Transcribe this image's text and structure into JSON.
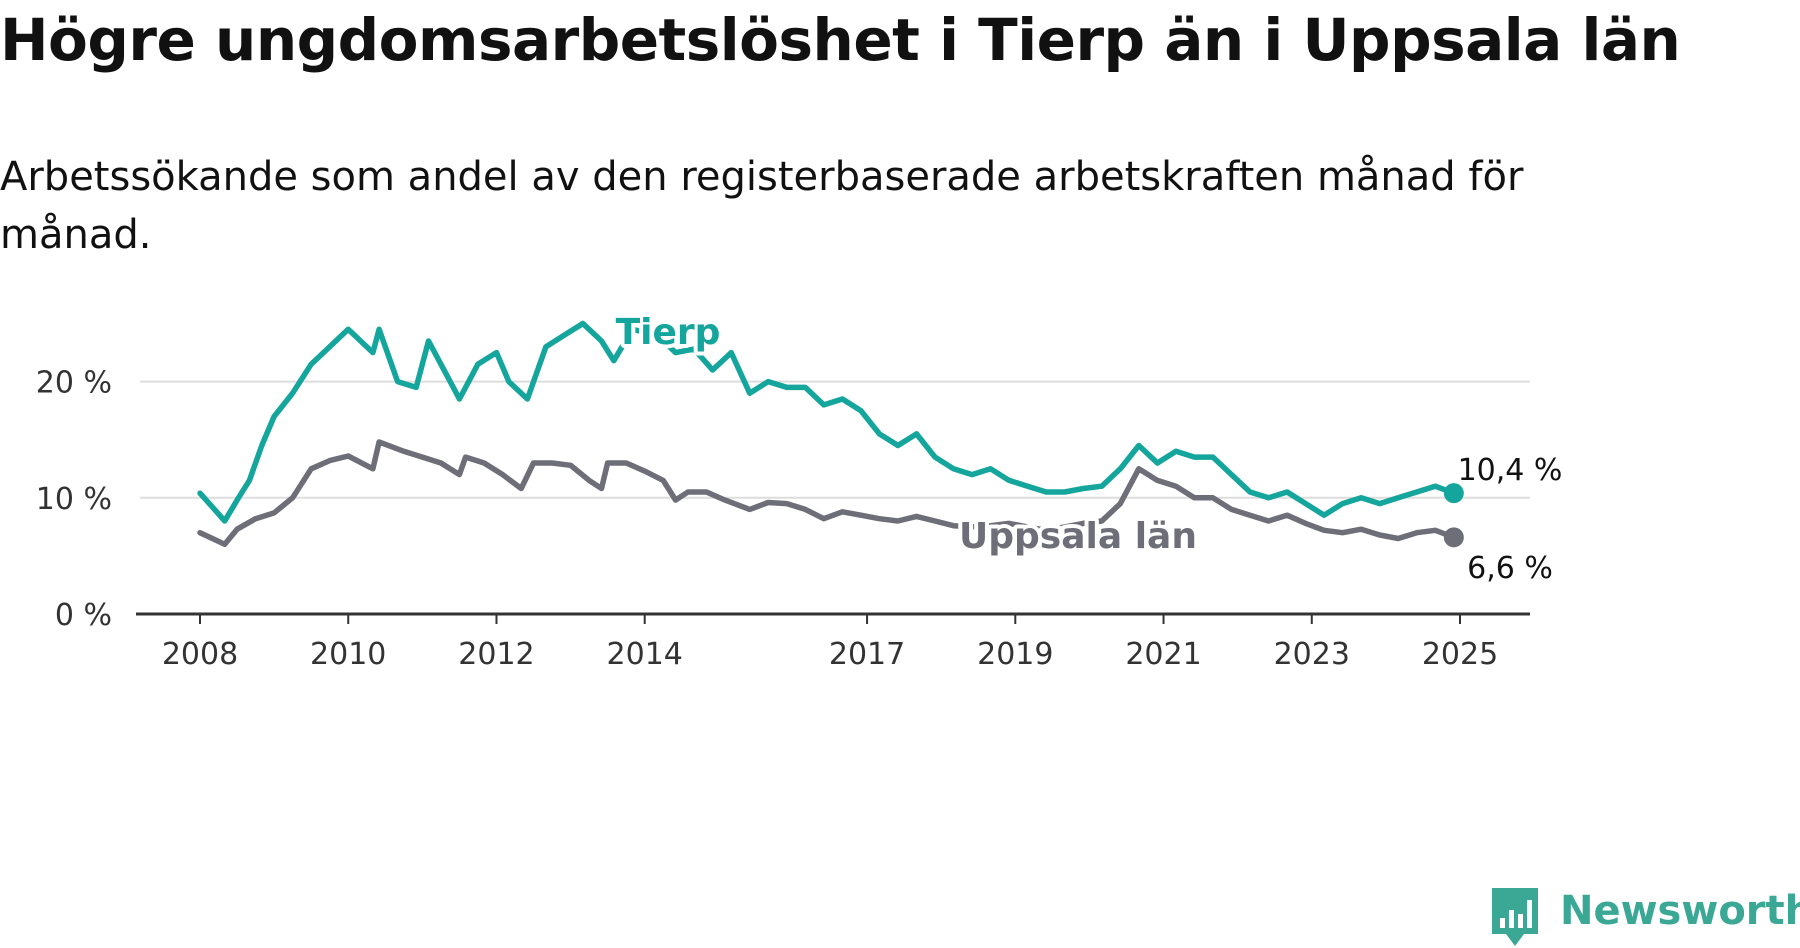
{
  "title": "Högre ungdomsarbetslöshet i Tierp än i Uppsala län",
  "subtitle": "Arbetssökande som andel av den registerbaserade arbetskraften månad för månad.",
  "brand": {
    "name": "Newsworthy",
    "color": "#3aa894"
  },
  "colors": {
    "tierp": "#14a59c",
    "uppsala": "#6e6e78",
    "grid": "#dddddd",
    "axis": "#333333"
  },
  "chart_data": {
    "type": "line",
    "title": "Högre ungdomsarbetslöshet i Tierp än i Uppsala län",
    "subtitle": "Arbetssökande som andel av den registerbaserade arbetskraften månad för månad.",
    "xlabel": "",
    "ylabel": "",
    "x_ticks": [
      "2008",
      "2010",
      "2012",
      "2014",
      "2017",
      "2019",
      "2021",
      "2023",
      "2025"
    ],
    "y_ticks": [
      "0 %",
      "10 %",
      "20 %"
    ],
    "xlim": [
      "2008-01",
      "2025-01"
    ],
    "ylim": [
      0,
      20
    ],
    "grid": "horizontal",
    "legend": "inline labels",
    "series": [
      {
        "name": "Tierp",
        "color": "#14a59c",
        "end_label": "10,4 %",
        "points": [
          [
            "2008-01",
            10.4
          ],
          [
            "2008-03",
            9.2
          ],
          [
            "2008-05",
            8.0
          ],
          [
            "2008-07",
            9.8
          ],
          [
            "2008-09",
            11.5
          ],
          [
            "2008-11",
            14.5
          ],
          [
            "2009-01",
            17.0
          ],
          [
            "2009-04",
            19.0
          ],
          [
            "2009-07",
            21.5
          ],
          [
            "2009-10",
            23.0
          ],
          [
            "2010-01",
            24.5
          ],
          [
            "2010-03",
            23.5
          ],
          [
            "2010-05",
            22.5
          ],
          [
            "2010-06",
            24.5
          ],
          [
            "2010-09",
            20.0
          ],
          [
            "2010-12",
            19.5
          ],
          [
            "2011-02",
            23.5
          ],
          [
            "2011-05",
            20.5
          ],
          [
            "2011-07",
            18.5
          ],
          [
            "2011-10",
            21.5
          ],
          [
            "2012-01",
            22.5
          ],
          [
            "2012-03",
            20.0
          ],
          [
            "2012-06",
            18.5
          ],
          [
            "2012-09",
            23.0
          ],
          [
            "2012-12",
            24.0
          ],
          [
            "2013-03",
            25.0
          ],
          [
            "2013-06",
            23.5
          ],
          [
            "2013-08",
            21.8
          ],
          [
            "2013-11",
            24.5
          ],
          [
            "2014-03",
            24.0
          ],
          [
            "2014-06",
            22.5
          ],
          [
            "2014-09",
            22.8
          ],
          [
            "2014-12",
            21.0
          ],
          [
            "2015-03",
            22.5
          ],
          [
            "2015-06",
            19.0
          ],
          [
            "2015-09",
            20.0
          ],
          [
            "2015-12",
            19.5
          ],
          [
            "2016-03",
            19.5
          ],
          [
            "2016-06",
            18.0
          ],
          [
            "2016-09",
            18.5
          ],
          [
            "2016-12",
            17.5
          ],
          [
            "2017-03",
            15.5
          ],
          [
            "2017-06",
            14.5
          ],
          [
            "2017-09",
            15.5
          ],
          [
            "2017-12",
            13.5
          ],
          [
            "2018-03",
            12.5
          ],
          [
            "2018-06",
            12.0
          ],
          [
            "2018-09",
            12.5
          ],
          [
            "2018-12",
            11.5
          ],
          [
            "2019-03",
            11.0
          ],
          [
            "2019-06",
            10.5
          ],
          [
            "2019-09",
            10.5
          ],
          [
            "2019-12",
            10.8
          ],
          [
            "2020-03",
            11.0
          ],
          [
            "2020-06",
            12.5
          ],
          [
            "2020-09",
            14.5
          ],
          [
            "2020-12",
            13.0
          ],
          [
            "2021-03",
            14.0
          ],
          [
            "2021-06",
            13.5
          ],
          [
            "2021-09",
            13.5
          ],
          [
            "2021-12",
            12.0
          ],
          [
            "2022-03",
            10.5
          ],
          [
            "2022-06",
            10.0
          ],
          [
            "2022-09",
            10.5
          ],
          [
            "2022-12",
            9.5
          ],
          [
            "2023-03",
            8.5
          ],
          [
            "2023-06",
            9.5
          ],
          [
            "2023-09",
            10.0
          ],
          [
            "2023-12",
            9.5
          ],
          [
            "2024-03",
            10.0
          ],
          [
            "2024-06",
            10.5
          ],
          [
            "2024-09",
            11.0
          ],
          [
            "2024-12",
            10.4
          ]
        ]
      },
      {
        "name": "Uppsala län",
        "color": "#6e6e78",
        "end_label": "6,6 %",
        "points": [
          [
            "2008-01",
            7.0
          ],
          [
            "2008-03",
            6.5
          ],
          [
            "2008-05",
            6.0
          ],
          [
            "2008-07",
            7.3
          ],
          [
            "2008-10",
            8.2
          ],
          [
            "2009-01",
            8.7
          ],
          [
            "2009-04",
            10.0
          ],
          [
            "2009-07",
            12.5
          ],
          [
            "2009-10",
            13.2
          ],
          [
            "2010-01",
            13.6
          ],
          [
            "2010-05",
            12.5
          ],
          [
            "2010-06",
            14.8
          ],
          [
            "2010-10",
            14.0
          ],
          [
            "2011-01",
            13.5
          ],
          [
            "2011-04",
            13.0
          ],
          [
            "2011-07",
            12.0
          ],
          [
            "2011-08",
            13.5
          ],
          [
            "2011-11",
            13.0
          ],
          [
            "2012-02",
            12.0
          ],
          [
            "2012-05",
            10.8
          ],
          [
            "2012-07",
            13.0
          ],
          [
            "2012-10",
            13.0
          ],
          [
            "2013-01",
            12.8
          ],
          [
            "2013-04",
            11.5
          ],
          [
            "2013-06",
            10.8
          ],
          [
            "2013-07",
            13.0
          ],
          [
            "2013-10",
            13.0
          ],
          [
            "2014-01",
            12.3
          ],
          [
            "2014-04",
            11.5
          ],
          [
            "2014-06",
            9.8
          ],
          [
            "2014-08",
            10.5
          ],
          [
            "2014-11",
            10.5
          ],
          [
            "2015-02",
            9.8
          ],
          [
            "2015-06",
            9.0
          ],
          [
            "2015-09",
            9.6
          ],
          [
            "2015-12",
            9.5
          ],
          [
            "2016-03",
            9.0
          ],
          [
            "2016-06",
            8.2
          ],
          [
            "2016-09",
            8.8
          ],
          [
            "2016-12",
            8.5
          ],
          [
            "2017-03",
            8.2
          ],
          [
            "2017-06",
            8.0
          ],
          [
            "2017-09",
            8.4
          ],
          [
            "2017-12",
            8.0
          ],
          [
            "2018-03",
            7.6
          ],
          [
            "2018-06",
            7.5
          ],
          [
            "2018-09",
            7.6
          ],
          [
            "2018-12",
            7.8
          ],
          [
            "2019-03",
            7.5
          ],
          [
            "2019-06",
            7.2
          ],
          [
            "2019-09",
            7.5
          ],
          [
            "2019-12",
            7.8
          ],
          [
            "2020-03",
            8.0
          ],
          [
            "2020-06",
            9.5
          ],
          [
            "2020-09",
            12.5
          ],
          [
            "2020-12",
            11.5
          ],
          [
            "2021-03",
            11.0
          ],
          [
            "2021-06",
            10.0
          ],
          [
            "2021-09",
            10.0
          ],
          [
            "2021-12",
            9.0
          ],
          [
            "2022-03",
            8.5
          ],
          [
            "2022-06",
            8.0
          ],
          [
            "2022-09",
            8.5
          ],
          [
            "2022-12",
            7.8
          ],
          [
            "2023-03",
            7.2
          ],
          [
            "2023-06",
            7.0
          ],
          [
            "2023-09",
            7.3
          ],
          [
            "2023-12",
            6.8
          ],
          [
            "2024-03",
            6.5
          ],
          [
            "2024-06",
            7.0
          ],
          [
            "2024-09",
            7.2
          ],
          [
            "2024-12",
            6.6
          ]
        ]
      }
    ]
  }
}
